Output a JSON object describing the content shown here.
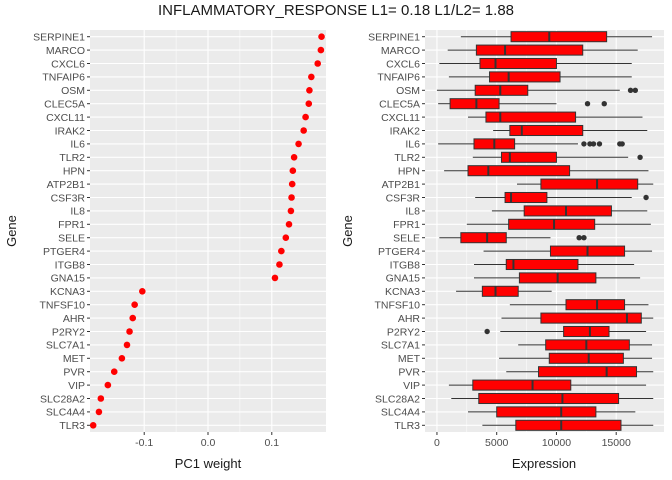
{
  "title": "INFLAMMATORY_RESPONSE L1= 0.18 L1/L2= 1.88",
  "colors": {
    "panel_bg": "#ebebeb",
    "grid": "#ffffff",
    "point": "#ff0000",
    "box_fill": "#ff0000",
    "box_line": "#333333",
    "outlier": "#333333"
  },
  "chart_data": [
    {
      "type": "scatter",
      "xlabel": "PC1 weight",
      "ylabel": "Gene",
      "xlim": [
        -0.185,
        0.185
      ],
      "xticks": [
        -0.1,
        0.0,
        0.1
      ],
      "xtick_labels": [
        "-0.1",
        "0.0",
        "0.1"
      ],
      "grid": true,
      "genes": [
        "SERPINE1",
        "MARCO",
        "CXCL6",
        "TNFAIP6",
        "OSM",
        "CLEC5A",
        "CXCL11",
        "IRAK2",
        "IL6",
        "TLR2",
        "HPN",
        "ATP2B1",
        "CSF3R",
        "IL8",
        "FPR1",
        "SELE",
        "PTGER4",
        "ITGB8",
        "GNA15",
        "KCNA3",
        "TNFSF10",
        "AHR",
        "P2RY2",
        "SLC7A1",
        "MET",
        "PVR",
        "VIP",
        "SLC28A2",
        "SLC4A4",
        "TLR3"
      ],
      "values": [
        0.178,
        0.177,
        0.172,
        0.162,
        0.159,
        0.158,
        0.153,
        0.15,
        0.142,
        0.135,
        0.133,
        0.132,
        0.131,
        0.13,
        0.127,
        0.122,
        0.115,
        0.112,
        0.105,
        -0.103,
        -0.115,
        -0.118,
        -0.123,
        -0.127,
        -0.135,
        -0.147,
        -0.157,
        -0.168,
        -0.171,
        -0.18
      ]
    },
    {
      "type": "box",
      "xlabel": "Expression",
      "ylabel": "Gene",
      "xlim": [
        -1000,
        19000
      ],
      "xticks": [
        0,
        5000,
        10000,
        15000
      ],
      "xtick_labels": [
        "0",
        "5000",
        "10000",
        "15000"
      ],
      "grid": true,
      "genes": [
        "SERPINE1",
        "MARCO",
        "CXCL6",
        "TNFAIP6",
        "OSM",
        "CLEC5A",
        "CXCL11",
        "IRAK2",
        "IL6",
        "TLR2",
        "HPN",
        "ATP2B1",
        "CSF3R",
        "IL8",
        "FPR1",
        "SELE",
        "PTGER4",
        "ITGB8",
        "GNA15",
        "KCNA3",
        "TNFSF10",
        "AHR",
        "P2RY2",
        "SLC7A1",
        "MET",
        "PVR",
        "VIP",
        "SLC28A2",
        "SLC4A4",
        "TLR3"
      ],
      "boxes": [
        {
          "min": 2000,
          "q1": 6200,
          "median": 9400,
          "q3": 14200,
          "max": 18000,
          "outliers": []
        },
        {
          "min": 900,
          "q1": 3300,
          "median": 5700,
          "q3": 12200,
          "max": 16800,
          "outliers": []
        },
        {
          "min": 200,
          "q1": 3600,
          "median": 4900,
          "q3": 10000,
          "max": 16300,
          "outliers": []
        },
        {
          "min": 1000,
          "q1": 4400,
          "median": 6000,
          "q3": 10300,
          "max": 16300,
          "outliers": []
        },
        {
          "min": 0,
          "q1": 3200,
          "median": 5300,
          "q3": 7600,
          "max": 15300,
          "outliers": [
            16200,
            16600
          ]
        },
        {
          "min": 100,
          "q1": 1100,
          "median": 3300,
          "q3": 5200,
          "max": 10000,
          "outliers": [
            12600,
            14000
          ]
        },
        {
          "min": 2600,
          "q1": 4100,
          "median": 5300,
          "q3": 11600,
          "max": 17200,
          "outliers": []
        },
        {
          "min": 4700,
          "q1": 6100,
          "median": 7100,
          "q3": 12200,
          "max": 17600,
          "outliers": []
        },
        {
          "min": 100,
          "q1": 3100,
          "median": 4800,
          "q3": 6500,
          "max": 11800,
          "outliers": [
            12300,
            12800,
            13100,
            13600,
            15300,
            15500
          ]
        },
        {
          "min": 3000,
          "q1": 5400,
          "median": 6100,
          "q3": 10000,
          "max": 16000,
          "outliers": [
            17000
          ]
        },
        {
          "min": 600,
          "q1": 2600,
          "median": 4300,
          "q3": 11100,
          "max": 17700,
          "outliers": []
        },
        {
          "min": 6700,
          "q1": 8700,
          "median": 13400,
          "q3": 16800,
          "max": 18100,
          "outliers": []
        },
        {
          "min": 3200,
          "q1": 5700,
          "median": 6200,
          "q3": 9200,
          "max": 16300,
          "outliers": [
            17500
          ]
        },
        {
          "min": 4600,
          "q1": 7300,
          "median": 10800,
          "q3": 14600,
          "max": 17600,
          "outliers": []
        },
        {
          "min": 2500,
          "q1": 6000,
          "median": 9800,
          "q3": 13200,
          "max": 17900,
          "outliers": []
        },
        {
          "min": 200,
          "q1": 2000,
          "median": 4200,
          "q3": 5800,
          "max": 9500,
          "outliers": [
            11900,
            12300
          ]
        },
        {
          "min": 3900,
          "q1": 9500,
          "median": 12600,
          "q3": 15700,
          "max": 18000,
          "outliers": []
        },
        {
          "min": 3100,
          "q1": 5800,
          "median": 6400,
          "q3": 11800,
          "max": 16500,
          "outliers": []
        },
        {
          "min": 3100,
          "q1": 6900,
          "median": 10100,
          "q3": 13300,
          "max": 17000,
          "outliers": []
        },
        {
          "min": 1600,
          "q1": 3800,
          "median": 4900,
          "q3": 6800,
          "max": 9600,
          "outliers": []
        },
        {
          "min": 6100,
          "q1": 10800,
          "median": 13400,
          "q3": 15700,
          "max": 17700,
          "outliers": []
        },
        {
          "min": 5400,
          "q1": 8700,
          "median": 15900,
          "q3": 17100,
          "max": 18100,
          "outliers": []
        },
        {
          "min": 5300,
          "q1": 10600,
          "median": 12800,
          "q3": 14400,
          "max": 17500,
          "outliers": [
            4200
          ]
        },
        {
          "min": 6800,
          "q1": 9100,
          "median": 12500,
          "q3": 16100,
          "max": 18000,
          "outliers": []
        },
        {
          "min": 5200,
          "q1": 9400,
          "median": 12700,
          "q3": 15600,
          "max": 18000,
          "outliers": []
        },
        {
          "min": 5800,
          "q1": 8500,
          "median": 14200,
          "q3": 16700,
          "max": 18100,
          "outliers": []
        },
        {
          "min": 1000,
          "q1": 3000,
          "median": 8000,
          "q3": 11200,
          "max": 17500,
          "outliers": []
        },
        {
          "min": 1200,
          "q1": 3500,
          "median": 10500,
          "q3": 15200,
          "max": 18100,
          "outliers": []
        },
        {
          "min": 2600,
          "q1": 5000,
          "median": 10400,
          "q3": 13300,
          "max": 16600,
          "outliers": []
        },
        {
          "min": 3800,
          "q1": 6600,
          "median": 10400,
          "q3": 15400,
          "max": 18100,
          "outliers": []
        }
      ]
    }
  ]
}
